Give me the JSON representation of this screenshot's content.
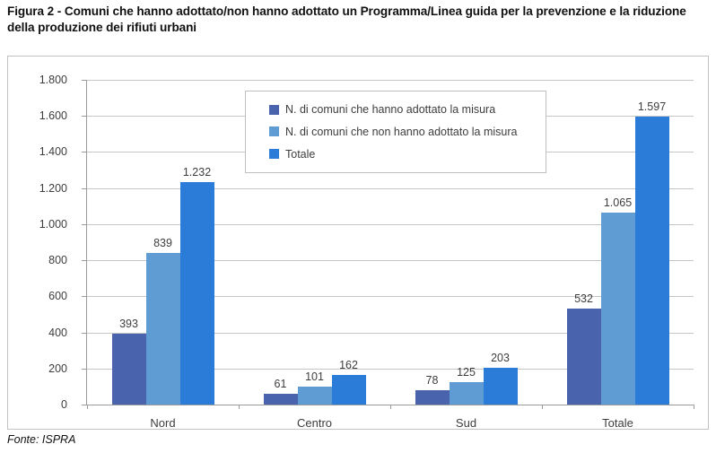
{
  "title": "Figura 2 - Comuni che hanno adottato/non hanno adottato un Programma/Linea guida per la prevenzione e la riduzione della produzione dei rifiuti urbani",
  "source": "Fonte: ISPRA",
  "colors": {
    "series_adopted": "#4a63ad",
    "series_not_adopted": "#5f9cd4",
    "series_total": "#2b7cd8",
    "gridline": "#c6c6c6",
    "axis": "#9b9b9b",
    "frame_border": "#c3c3c3",
    "text": "#3d3d3d"
  },
  "chart_data": {
    "type": "bar",
    "title": "",
    "xlabel": "",
    "ylabel": "",
    "categories": [
      "Nord",
      "Centro",
      "Sud",
      "Totale"
    ],
    "series": [
      {
        "name": "N. di comuni che hanno adottato la misura",
        "color": "#4a63ad",
        "values": [
          393,
          61,
          78,
          532
        ],
        "labels": [
          "393",
          "61",
          "78",
          "532"
        ]
      },
      {
        "name": "N. di comuni che non hanno adottato la misura",
        "color": "#5f9cd4",
        "values": [
          839,
          101,
          125,
          1065
        ],
        "labels": [
          "839",
          "101",
          "125",
          "1.065"
        ]
      },
      {
        "name": "Totale",
        "color": "#2b7cd8",
        "values": [
          1232,
          162,
          203,
          1597
        ],
        "labels": [
          "1.232",
          "162",
          "203",
          "1.597"
        ]
      }
    ],
    "ylim": [
      0,
      1800
    ],
    "ytick_step": 200,
    "ytick_labels": [
      "0",
      "200",
      "400",
      "600",
      "800",
      "1.000",
      "1.200",
      "1.400",
      "1.600",
      "1.800"
    ],
    "grid": true,
    "legend_position": "inside-top-center"
  }
}
